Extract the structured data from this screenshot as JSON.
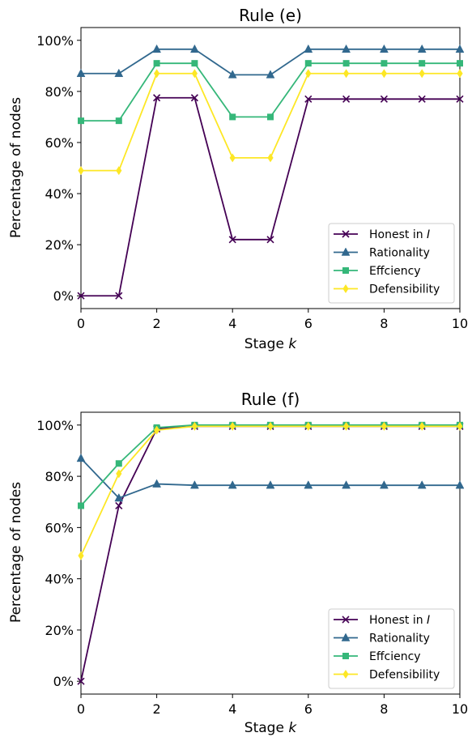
{
  "chart_data": [
    {
      "type": "line",
      "title": "Rule (e)",
      "xlabel": "Stage k",
      "xlabel_text": "Stage ",
      "xlabel_var": "k",
      "ylabel": "Percentage of nodes",
      "xlim": [
        0,
        10
      ],
      "ylim": [
        -0.05,
        1.05
      ],
      "xticks": [
        "0",
        "2",
        "4",
        "6",
        "8",
        "10"
      ],
      "yticks": [
        "0%",
        "20%",
        "40%",
        "60%",
        "80%",
        "100%"
      ],
      "grid": false,
      "legend_position": "lower-right",
      "x": [
        0,
        1,
        2,
        3,
        4,
        5,
        6,
        7,
        8,
        9,
        10
      ],
      "series": [
        {
          "name": "Honest in I",
          "name_text": "Honest in ",
          "name_var": "I",
          "color": "#440154",
          "marker": "x",
          "values": [
            0.0,
            0.0,
            0.775,
            0.775,
            0.22,
            0.22,
            0.77,
            0.77,
            0.77,
            0.77,
            0.77
          ]
        },
        {
          "name": "Rationality",
          "color": "#31688e",
          "marker": "triangle",
          "values": [
            0.87,
            0.87,
            0.965,
            0.965,
            0.865,
            0.865,
            0.965,
            0.965,
            0.965,
            0.965,
            0.965
          ]
        },
        {
          "name": "Effciency",
          "color": "#35b779",
          "marker": "square",
          "values": [
            0.685,
            0.685,
            0.91,
            0.91,
            0.7,
            0.7,
            0.91,
            0.91,
            0.91,
            0.91,
            0.91
          ]
        },
        {
          "name": "Defensibility",
          "color": "#fde725",
          "marker": "diamond",
          "values": [
            0.49,
            0.49,
            0.87,
            0.87,
            0.54,
            0.54,
            0.87,
            0.87,
            0.87,
            0.87,
            0.87
          ]
        }
      ]
    },
    {
      "type": "line",
      "title": "Rule (f)",
      "xlabel": "Stage k",
      "xlabel_text": "Stage ",
      "xlabel_var": "k",
      "ylabel": "Percentage of nodes",
      "xlim": [
        0,
        10
      ],
      "ylim": [
        -0.05,
        1.05
      ],
      "xticks": [
        "0",
        "2",
        "4",
        "6",
        "8",
        "10"
      ],
      "yticks": [
        "0%",
        "20%",
        "40%",
        "60%",
        "80%",
        "100%"
      ],
      "grid": false,
      "legend_position": "lower-right",
      "x": [
        0,
        1,
        2,
        3,
        4,
        5,
        6,
        7,
        8,
        9,
        10
      ],
      "series": [
        {
          "name": "Honest in I",
          "name_text": "Honest in ",
          "name_var": "I",
          "color": "#440154",
          "marker": "x",
          "values": [
            0.0,
            0.685,
            0.985,
            0.995,
            0.995,
            0.995,
            0.995,
            0.995,
            0.995,
            0.995,
            0.995
          ]
        },
        {
          "name": "Rationality",
          "color": "#31688e",
          "marker": "triangle",
          "values": [
            0.87,
            0.715,
            0.77,
            0.765,
            0.765,
            0.765,
            0.765,
            0.765,
            0.765,
            0.765,
            0.765
          ]
        },
        {
          "name": "Effciency",
          "color": "#35b779",
          "marker": "square",
          "values": [
            0.685,
            0.85,
            0.99,
            1.0,
            1.0,
            1.0,
            1.0,
            1.0,
            1.0,
            1.0,
            1.0
          ]
        },
        {
          "name": "Defensibility",
          "color": "#fde725",
          "marker": "diamond",
          "values": [
            0.49,
            0.81,
            0.98,
            0.995,
            0.995,
            0.995,
            0.995,
            0.995,
            0.995,
            0.995,
            0.995
          ]
        }
      ]
    }
  ]
}
